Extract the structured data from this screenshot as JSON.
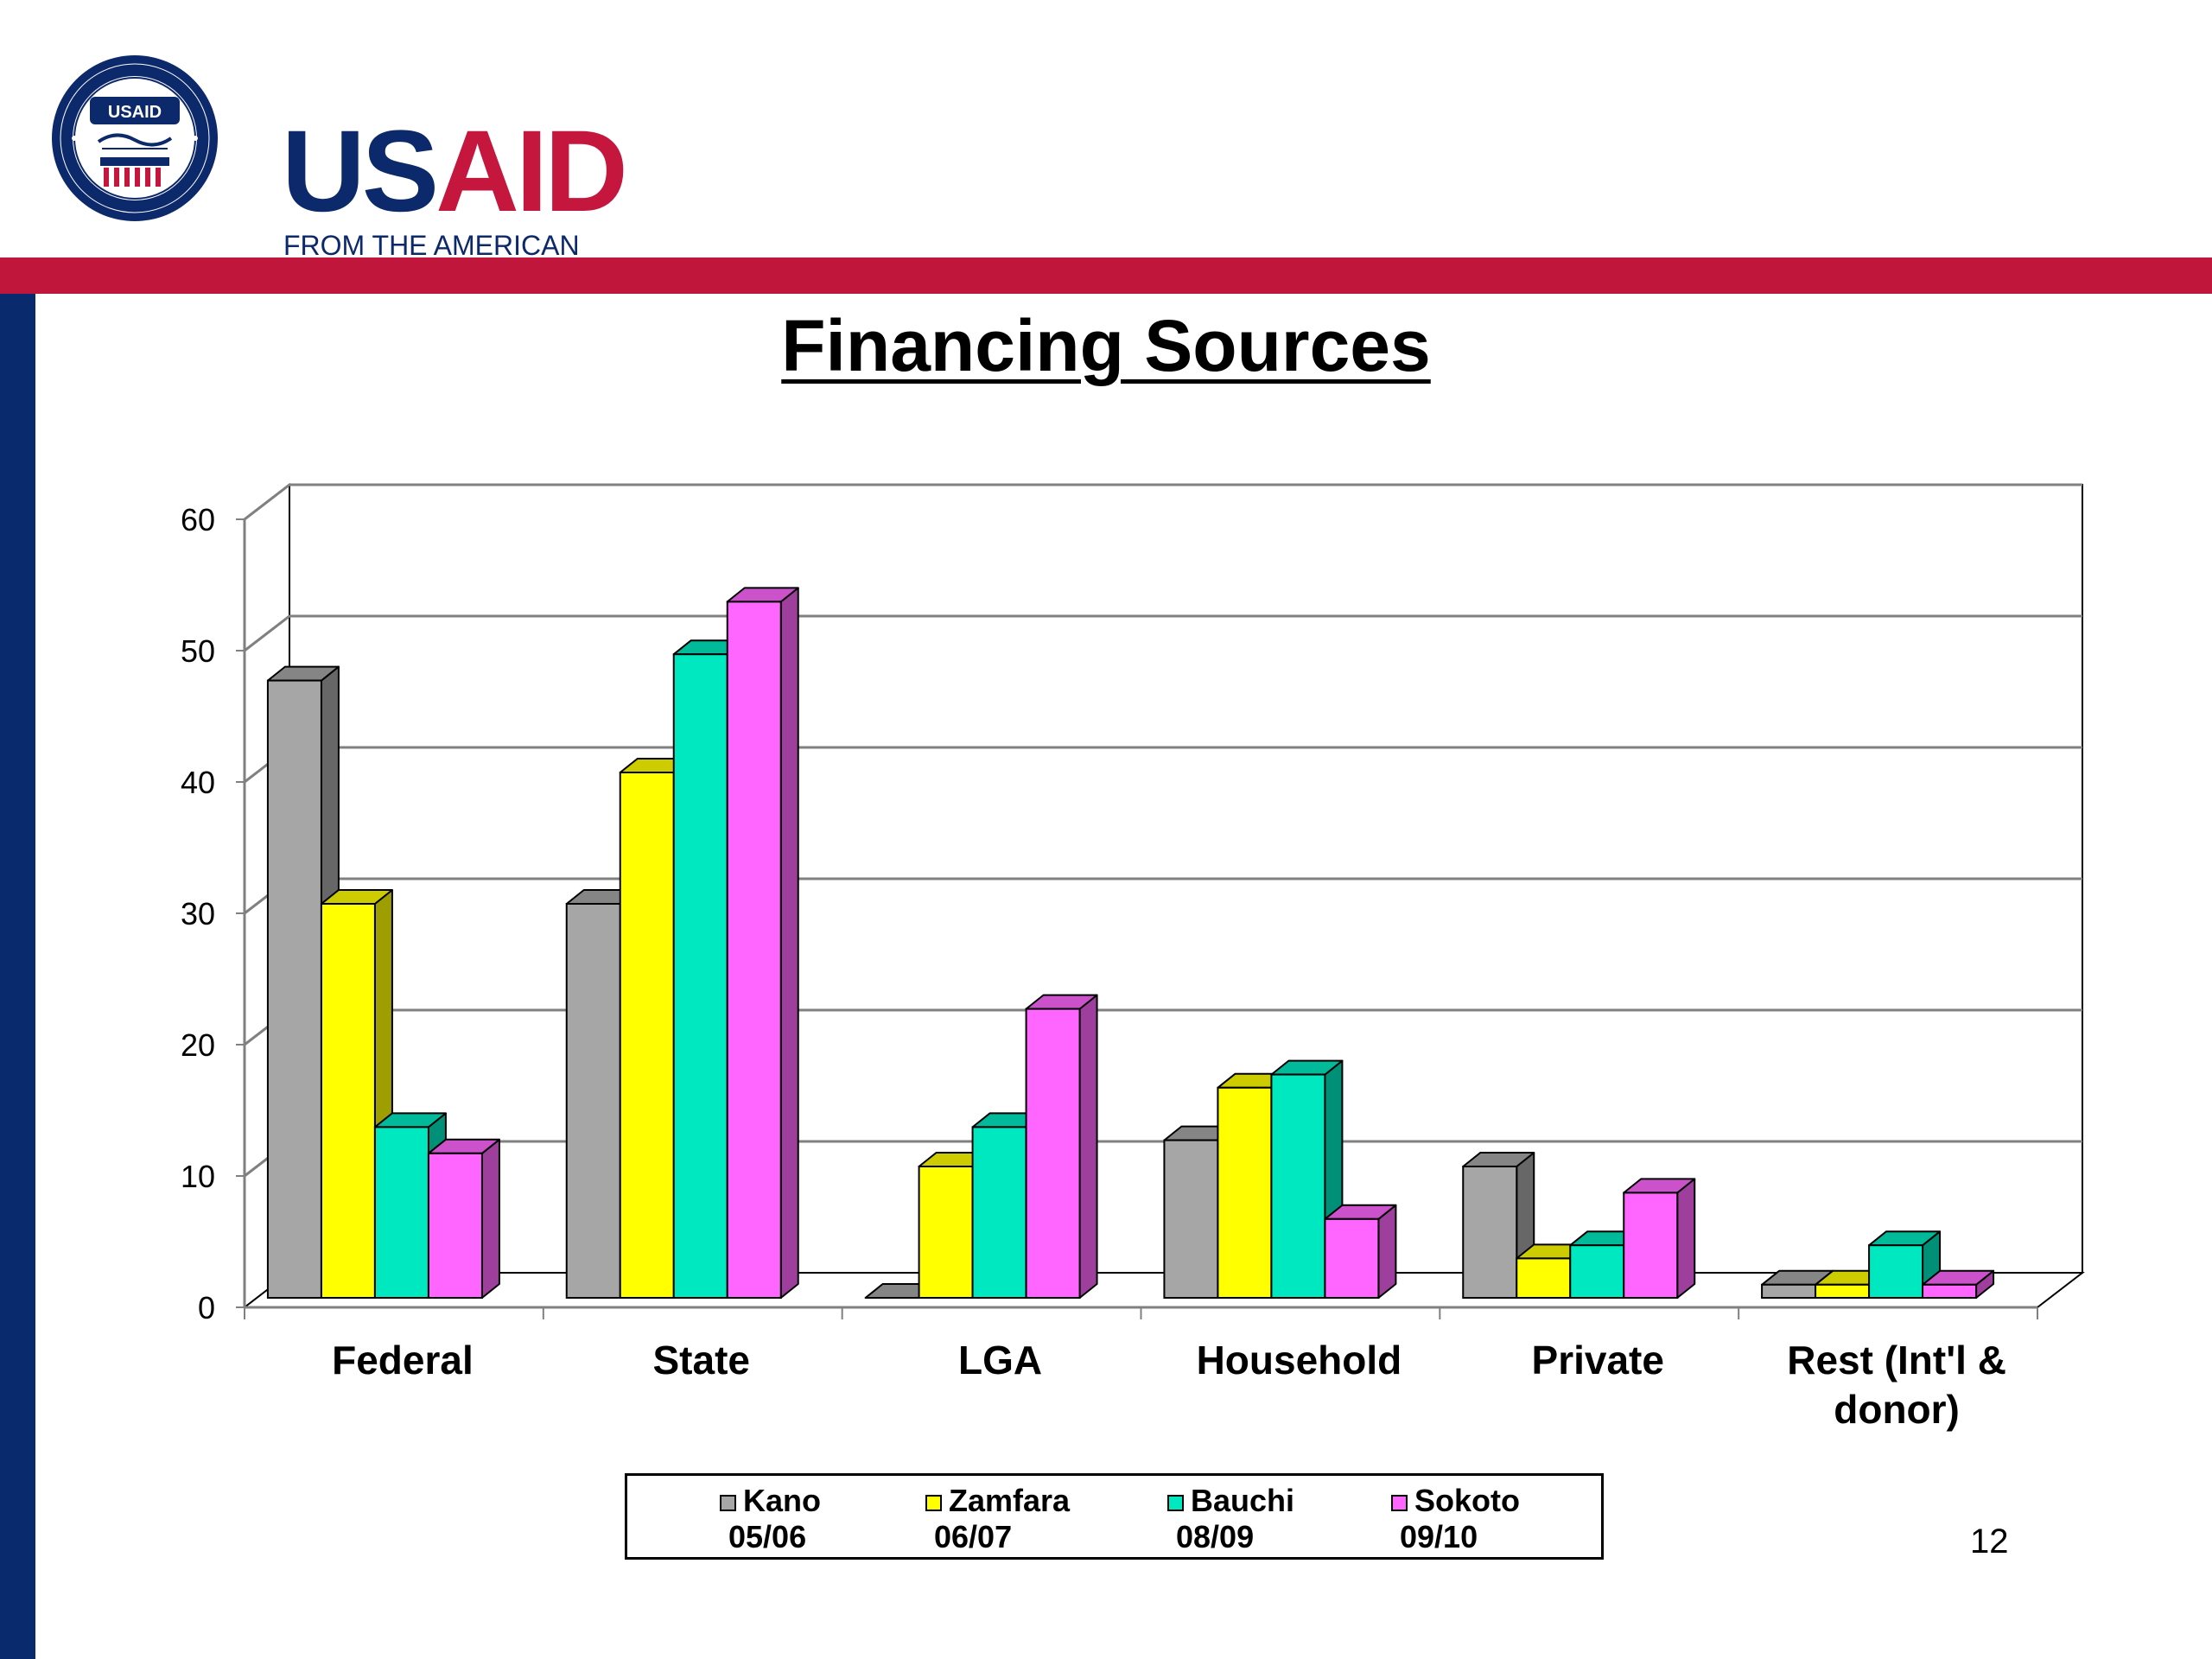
{
  "logo": {
    "wordmark_us": "US",
    "wordmark_aid": "AID",
    "tagline": "FROM THE AMERICAN PEOPLE",
    "seal_label": "USAID",
    "seal_ring_text": "UNITED STATES AGENCY INTERNATIONAL DEVELOPMENT"
  },
  "colors": {
    "header_red": "#c0163c",
    "sidebar_navy": "#0a2a6e"
  },
  "slide": {
    "title": "Financing Sources",
    "page_number": "12"
  },
  "chart_data": {
    "type": "bar",
    "title": "",
    "xlabel": "",
    "ylabel": "",
    "ylim": [
      0,
      60
    ],
    "yticks": [
      "0",
      "10",
      "20",
      "30",
      "40",
      "50",
      "60"
    ],
    "grid": true,
    "legend_position": "bottom",
    "categories": [
      "Federal",
      "State",
      "LGA",
      "Household",
      "Private",
      "Rest (Int'l & donor)"
    ],
    "series": [
      {
        "name": "Kano 05/06",
        "name_line1": "Kano",
        "name_line2": "05/06",
        "color": "#a6a6a6",
        "values": [
          47,
          30,
          0,
          12,
          10,
          1
        ]
      },
      {
        "name": "Zamfara 06/07",
        "name_line1": "Zamfara",
        "name_line2": "06/07",
        "color": "#ffff00",
        "values": [
          30,
          40,
          10,
          16,
          3,
          1
        ]
      },
      {
        "name": "Bauchi 08/09",
        "name_line1": "Bauchi",
        "name_line2": "08/09",
        "color": "#00e8c0",
        "values": [
          13,
          49,
          13,
          17,
          4,
          4
        ]
      },
      {
        "name": "Sokoto 09/10",
        "name_line1": "Sokoto",
        "name_line2": "09/10",
        "color": "#ff66ff",
        "values": [
          11,
          53,
          22,
          6,
          8,
          1
        ]
      }
    ]
  }
}
